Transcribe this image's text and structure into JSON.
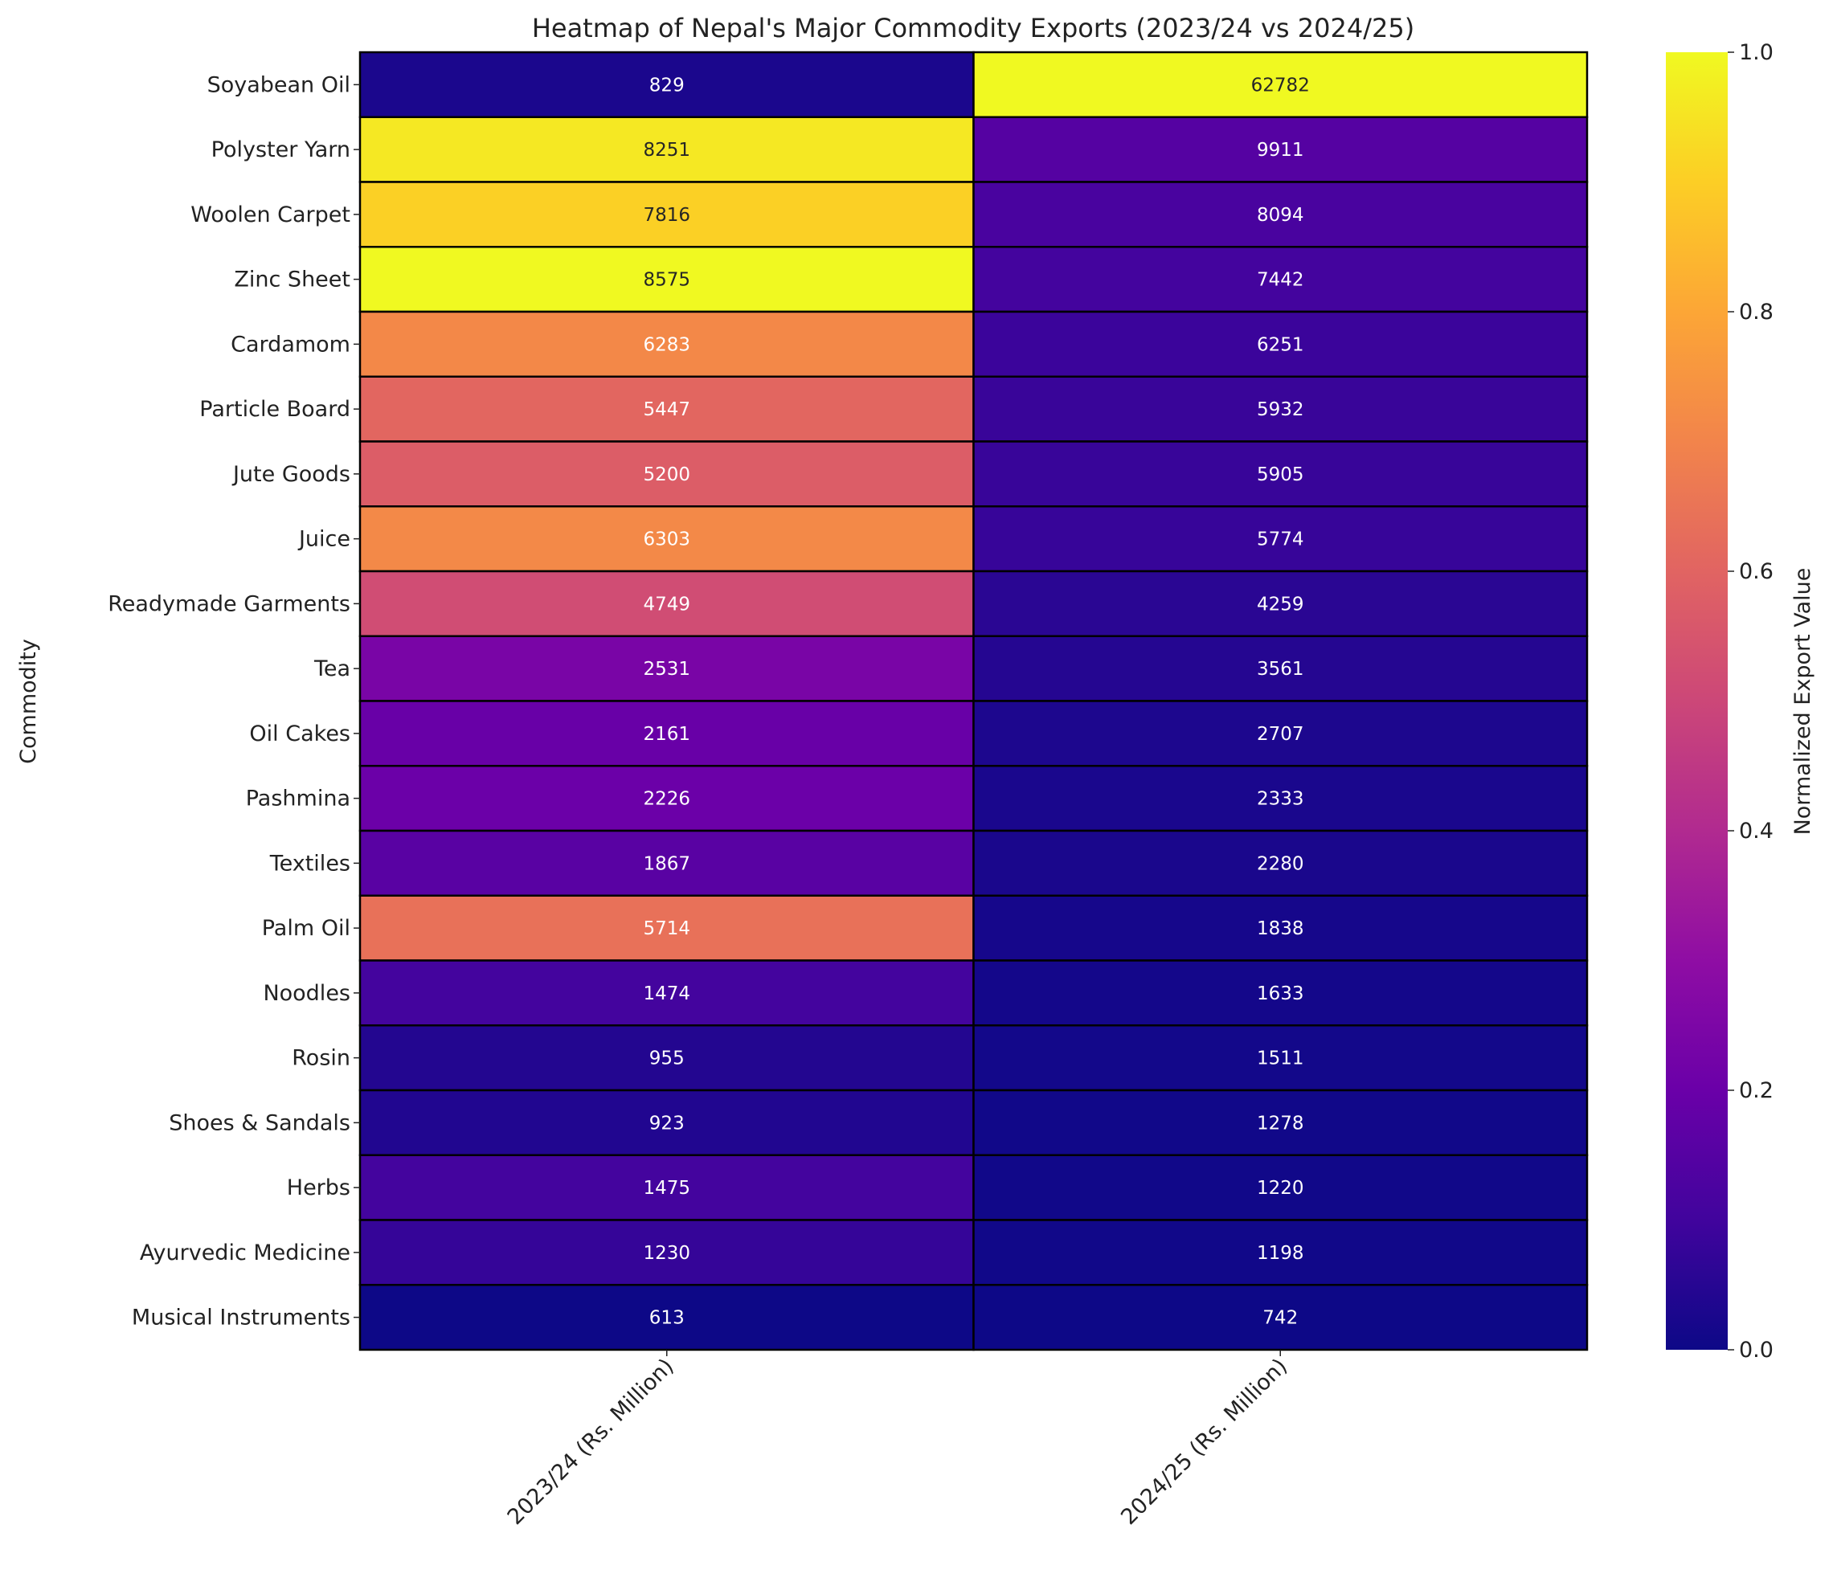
{
  "chart_data": {
    "type": "heatmap",
    "title": "Heatmap of Nepal's Major Commodity Exports (2023/24 vs 2024/25)",
    "ylabel": "Commodity",
    "xlabel": "",
    "colorbar_label": "Normalized Export Value",
    "colormap": "plasma",
    "normalization": "per column (min-max)",
    "colorbar_range": [
      0,
      1
    ],
    "colorbar_ticks": [
      "0.0",
      "0.2",
      "0.4",
      "0.6",
      "0.8",
      "1.0"
    ],
    "columns": [
      "2023/24 (Rs. Million)",
      "2024/25 (Rs. Million)"
    ],
    "rows": [
      "Soyabean Oil",
      "Polyster Yarn",
      "Woolen Carpet",
      "Zinc Sheet",
      "Cardamom",
      "Particle Board",
      "Jute Goods",
      "Juice",
      "Readymade Garments",
      "Tea",
      "Oil Cakes",
      "Pashmina",
      "Textiles",
      "Palm Oil",
      "Noodles",
      "Rosin",
      "Shoes & Sandals",
      "Herbs",
      "Ayurvedic Medicine",
      "Musical Instruments"
    ],
    "values": [
      [
        829,
        62782
      ],
      [
        8251,
        9911
      ],
      [
        7816,
        8094
      ],
      [
        8575,
        7442
      ],
      [
        6283,
        6251
      ],
      [
        5447,
        5932
      ],
      [
        5200,
        5905
      ],
      [
        6303,
        5774
      ],
      [
        4749,
        4259
      ],
      [
        2531,
        3561
      ],
      [
        2161,
        2707
      ],
      [
        2226,
        2333
      ],
      [
        1867,
        2280
      ],
      [
        5714,
        1838
      ],
      [
        1474,
        1633
      ],
      [
        955,
        1511
      ],
      [
        923,
        1278
      ],
      [
        1475,
        1220
      ],
      [
        1230,
        1198
      ],
      [
        613,
        742
      ]
    ]
  }
}
